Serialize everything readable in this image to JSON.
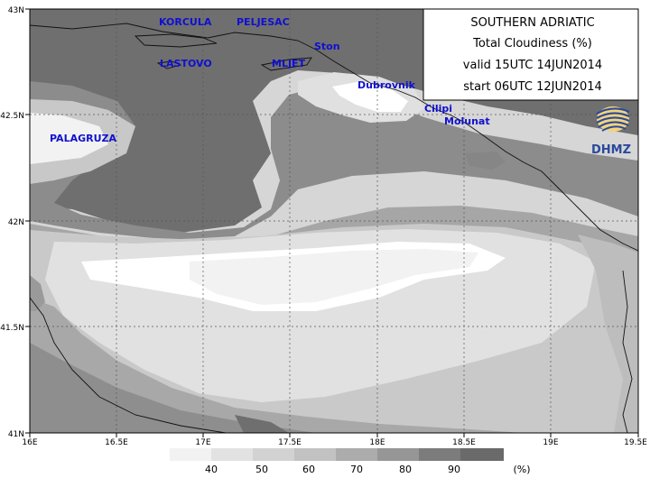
{
  "title_box": {
    "line1": "SOUTHERN ADRIATIC",
    "line2": "Total Cloudiness (%)",
    "line3": "valid 15UTC 14JUN2014",
    "line4": "start 06UTC 12JUN2014"
  },
  "logo": {
    "text": "DHMZ"
  },
  "axes": {
    "lon_labels": [
      "16E",
      "16.5E",
      "17E",
      "17.5E",
      "18E",
      "18.5E",
      "19E",
      "19.5E"
    ],
    "lat_labels": [
      "43N",
      "42.5N",
      "42N",
      "41.5N",
      "41N"
    ]
  },
  "places": {
    "korcula": "KORCULA",
    "peljesac": "PELJESAC",
    "ston": "Ston",
    "lastovo": "LASTOVO",
    "mljet": "MLJET",
    "dubrovnik": "Dubrovnik",
    "cilipi": "Cilipi",
    "palagruza": "PALAGRUZA",
    "molunat": "Molunat"
  },
  "legend": {
    "labels": [
      "40",
      "50",
      "60",
      "70",
      "80",
      "90"
    ],
    "unit": "(%)",
    "colors": [
      "#f2f2f2",
      "#e2e2e2",
      "#d2d2d2",
      "#c2c2c2",
      "#acacac",
      "#969696",
      "#7c7c7c"
    ]
  },
  "colors": {
    "c90": "#6f6f6f",
    "c80": "#8a8a8a",
    "c70": "#a8a8a8",
    "c60": "#bdbdbd",
    "c50": "#d0d0d0",
    "c40": "#e2e2e2",
    "c_lt40": "#ffffff",
    "place_text": "#1010d0"
  }
}
